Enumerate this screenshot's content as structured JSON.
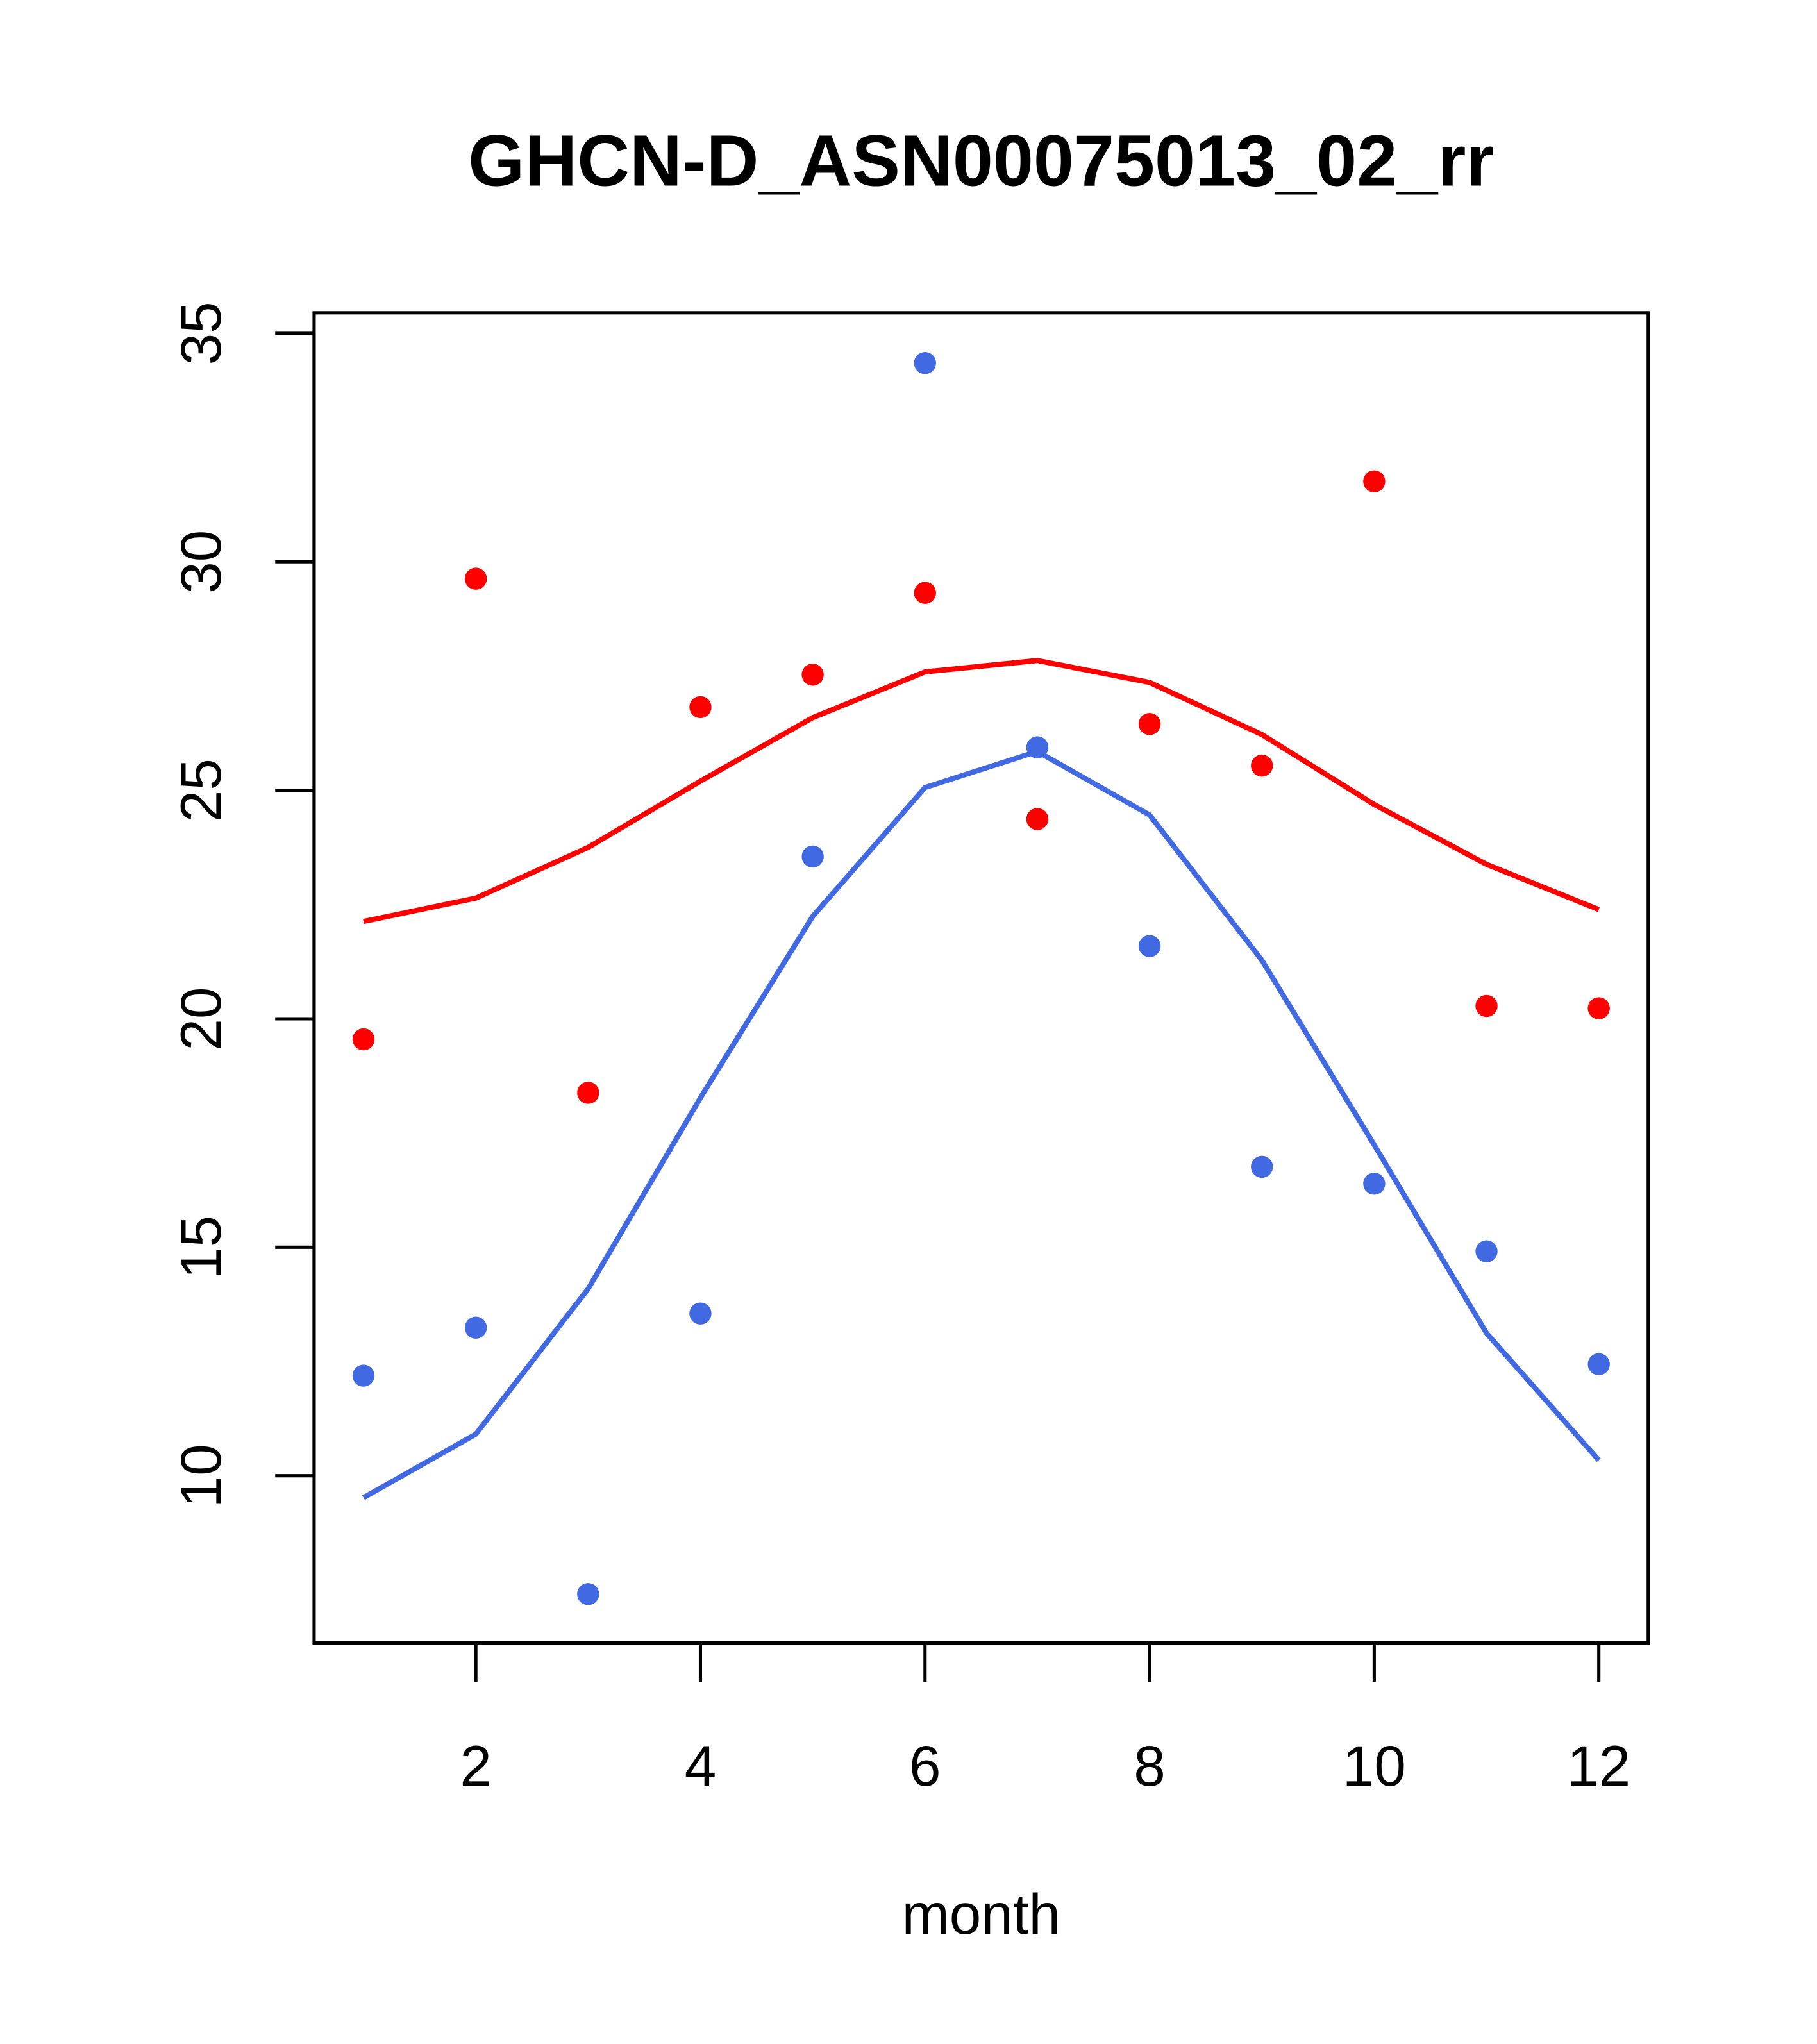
{
  "chart_data": {
    "type": "scatter",
    "title": "GHCN-D_ASN00075013_02_rr",
    "xlabel": "month",
    "ylabel": "",
    "xlim": [
      0.56,
      12.44
    ],
    "ylim": [
      6.34,
      35.45
    ],
    "x_ticks": [
      2,
      4,
      6,
      8,
      10,
      12
    ],
    "x_tick_labels": [
      "2",
      "4",
      "6",
      "8",
      "10",
      "12"
    ],
    "y_ticks": [
      10,
      15,
      20,
      25,
      30,
      35
    ],
    "y_tick_labels": [
      "10",
      "15",
      "20",
      "25",
      "30",
      "35"
    ],
    "grid": false,
    "x": [
      1,
      2,
      3,
      4,
      5,
      6,
      7,
      8,
      9,
      10,
      11,
      12
    ],
    "series": [
      {
        "name": "red points",
        "kind": "points",
        "color": "#ff0000",
        "values": [
          19.55,
          29.63,
          18.38,
          26.82,
          27.53,
          29.32,
          24.37,
          26.45,
          25.54,
          31.76,
          20.28,
          20.23
        ]
      },
      {
        "name": "red line",
        "kind": "line",
        "color": "#ff0000",
        "values": [
          22.13,
          22.64,
          23.75,
          25.2,
          26.59,
          27.59,
          27.84,
          27.36,
          26.22,
          24.69,
          23.38,
          22.39
        ]
      },
      {
        "name": "blue points",
        "kind": "points",
        "color": "#4169e1",
        "values": [
          12.19,
          13.24,
          7.41,
          13.55,
          23.55,
          34.35,
          25.94,
          21.59,
          16.76,
          16.39,
          14.91,
          12.44
        ]
      },
      {
        "name": "blue line",
        "kind": "line",
        "color": "#4169e1",
        "values": [
          9.52,
          10.91,
          14.09,
          18.27,
          22.24,
          25.06,
          25.85,
          24.46,
          21.28,
          17.24,
          13.12,
          10.34
        ]
      }
    ]
  }
}
